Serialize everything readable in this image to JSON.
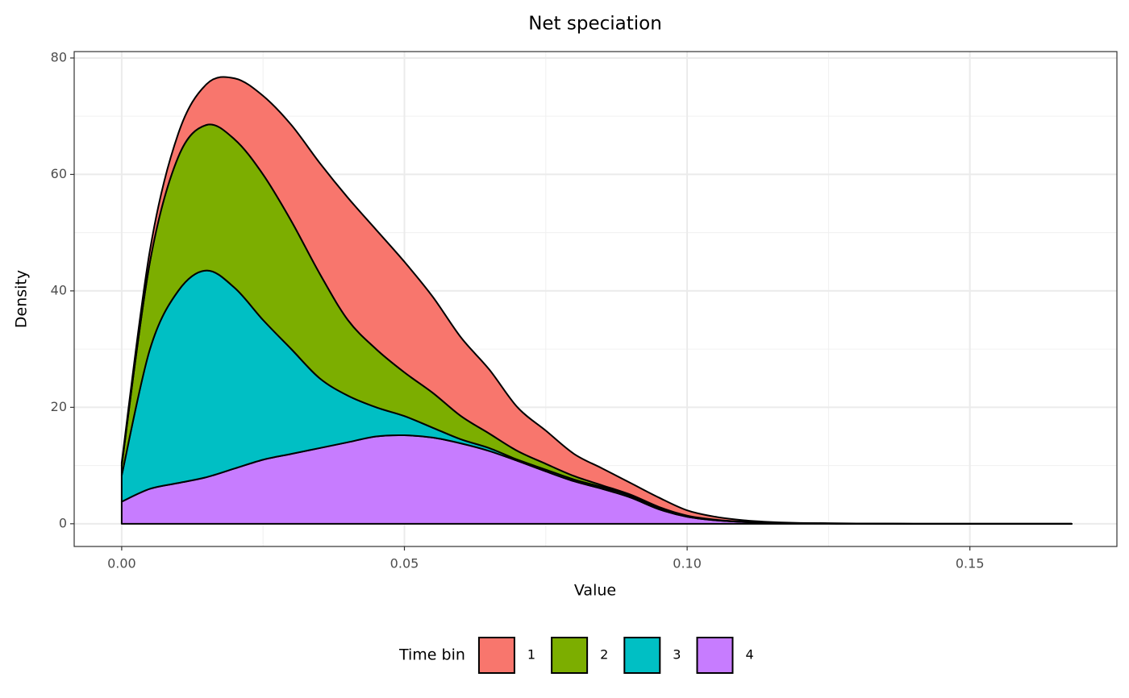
{
  "chart_data": {
    "type": "stacked-density",
    "title": "Net speciation",
    "x_label": "Value",
    "y_label": "Density",
    "legend_title": "Time bin",
    "legend_position": "bottom",
    "grid": true,
    "x": [
      0,
      0.005,
      0.01,
      0.015,
      0.02,
      0.025,
      0.03,
      0.035,
      0.04,
      0.045,
      0.05,
      0.055,
      0.06,
      0.065,
      0.07,
      0.075,
      0.08,
      0.085,
      0.09,
      0.095,
      0.1,
      0.105,
      0.11,
      0.115,
      0.12,
      0.13,
      0.14,
      0.15,
      0.168
    ],
    "series": [
      {
        "name": "1",
        "color": "#F8766D",
        "values": [
          0.5,
          2,
          4,
          7,
          10.5,
          13.5,
          16.5,
          19,
          21,
          20.5,
          19,
          16.5,
          13.5,
          11,
          7.5,
          5.7,
          3.8,
          2.9,
          2,
          1.6,
          0.9,
          0.5,
          0.25,
          0.12,
          0.06,
          0.03,
          0,
          0,
          0
        ]
      },
      {
        "name": "2",
        "color": "#7CAE00",
        "values": [
          1.7,
          15,
          23,
          25,
          25.5,
          25,
          22,
          18,
          13,
          10,
          7.5,
          6,
          4,
          2.5,
          1.5,
          1,
          0.6,
          0.3,
          0.2,
          0.2,
          0.1,
          0.05,
          0.03,
          0.01,
          0,
          0,
          0,
          0,
          0
        ]
      },
      {
        "name": "3",
        "color": "#00BFC4",
        "values": [
          4.5,
          24,
          33,
          35.5,
          31,
          24,
          18,
          12,
          8,
          5,
          3.3,
          1.7,
          0.7,
          0.5,
          0.2,
          0.3,
          0.3,
          0.3,
          0.3,
          0.2,
          0.1,
          0.05,
          0.02,
          0.01,
          0,
          0,
          0,
          0,
          0
        ]
      },
      {
        "name": "4",
        "color": "#C77CFF",
        "values": [
          3.8,
          6,
          7,
          8,
          9.5,
          11,
          12,
          13,
          14,
          15,
          15.2,
          14.8,
          13.8,
          12.5,
          10.8,
          9,
          7.3,
          6,
          4.5,
          2.5,
          1.2,
          0.6,
          0.3,
          0.15,
          0.08,
          0.02,
          0,
          0,
          0
        ]
      }
    ],
    "xlim": [
      -0.0084,
      0.176
    ],
    "ylim": [
      -3.9,
      81.1
    ],
    "xticks": [
      {
        "value": 0,
        "label": "0.00"
      },
      0.05,
      {
        "value": 0.1,
        "label": "0.10"
      },
      {
        "value": 0.15,
        "label": "0.15"
      }
    ],
    "yticks": [
      0,
      20,
      40,
      60,
      80
    ]
  }
}
